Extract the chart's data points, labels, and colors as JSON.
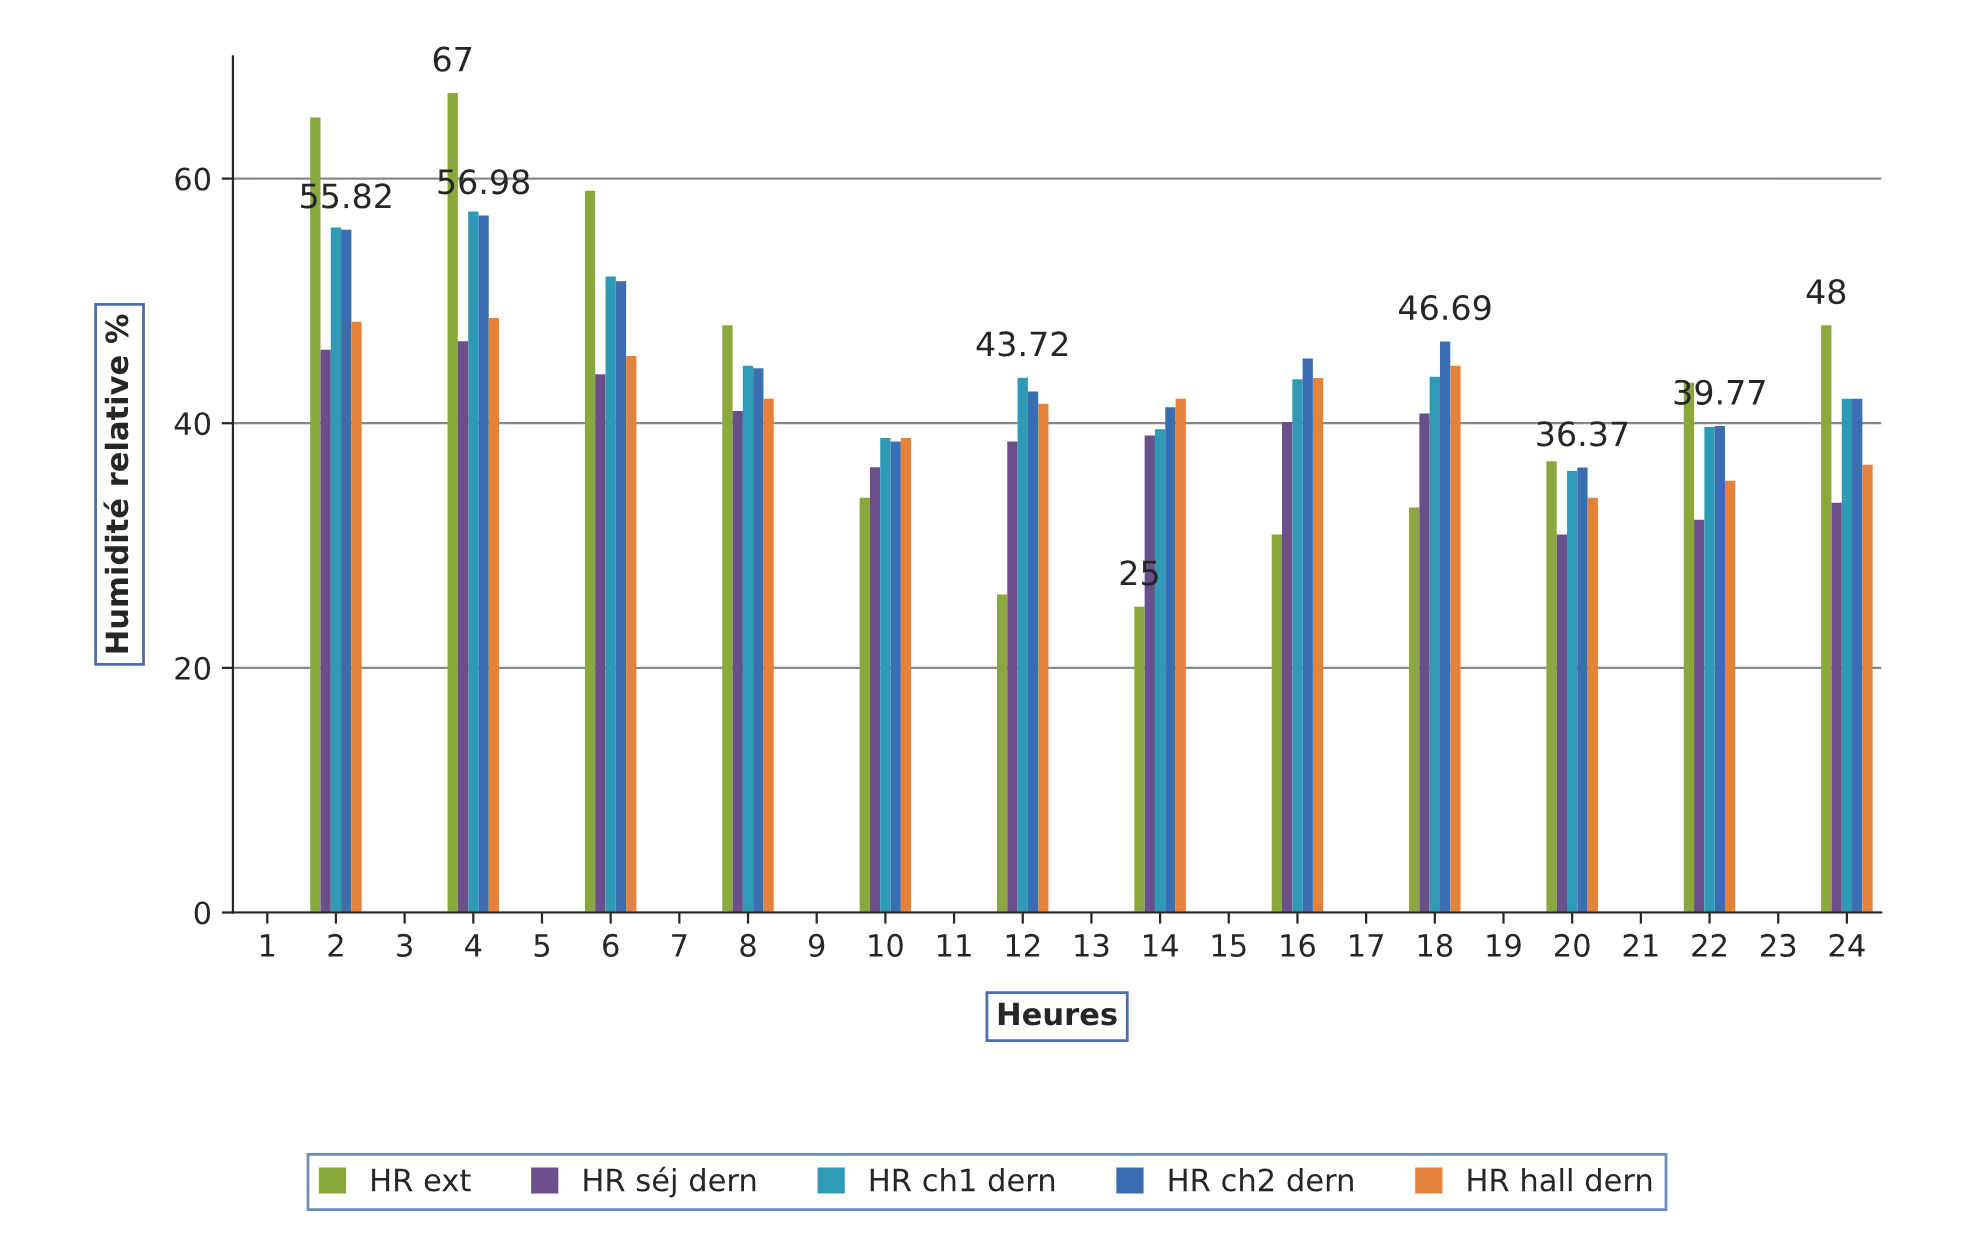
{
  "chart_data": {
    "type": "bar",
    "xlabel": "Heures",
    "ylabel": "Humidité relative %",
    "categories": [
      "1",
      "2",
      "3",
      "4",
      "5",
      "6",
      "7",
      "8",
      "9",
      "10",
      "11",
      "12",
      "13",
      "14",
      "15",
      "16",
      "17",
      "18",
      "19",
      "20",
      "21",
      "22",
      "23",
      "24"
    ],
    "ylim": [
      0,
      70
    ],
    "yticks": [
      0,
      20,
      40,
      60
    ],
    "grid": "y",
    "legend": "bottom",
    "series": [
      {
        "name": "HR ext",
        "color": "#8aa83c",
        "values": [
          null,
          65.0,
          null,
          67,
          null,
          59.0,
          null,
          48.0,
          null,
          33.9,
          null,
          26.0,
          null,
          25,
          null,
          30.9,
          null,
          33.1,
          null,
          36.9,
          null,
          43.3,
          null,
          48
        ],
        "value_labels": [
          null,
          null,
          null,
          "67",
          null,
          null,
          null,
          null,
          null,
          null,
          null,
          null,
          null,
          "25",
          null,
          null,
          null,
          null,
          null,
          null,
          null,
          null,
          null,
          "48"
        ]
      },
      {
        "name": "HR séj dern",
        "color": "#6a4f8a",
        "values": [
          null,
          46.0,
          null,
          46.7,
          null,
          44.0,
          null,
          41.0,
          null,
          36.4,
          null,
          38.5,
          null,
          39.0,
          null,
          40.1,
          null,
          40.8,
          null,
          30.9,
          null,
          32.1,
          null,
          33.5
        ]
      },
      {
        "name": "HR ch1 dern",
        "color": "#2e9ab5",
        "values": [
          null,
          56.0,
          null,
          57.3,
          null,
          52.0,
          null,
          44.7,
          null,
          38.8,
          null,
          43.72,
          null,
          39.5,
          null,
          43.6,
          null,
          43.8,
          null,
          36.1,
          null,
          39.7,
          null,
          42.0
        ],
        "value_labels": [
          null,
          null,
          null,
          null,
          null,
          null,
          null,
          null,
          null,
          null,
          null,
          "43.72",
          null,
          null,
          null,
          null,
          null,
          null,
          null,
          null,
          null,
          null,
          null,
          null
        ]
      },
      {
        "name": "HR ch2 dern",
        "color": "#3a6eb0",
        "values": [
          null,
          55.82,
          null,
          56.98,
          null,
          51.6,
          null,
          44.5,
          null,
          38.5,
          null,
          42.6,
          null,
          41.3,
          null,
          45.3,
          null,
          46.69,
          null,
          36.37,
          null,
          39.77,
          null,
          42.0
        ],
        "value_labels": [
          null,
          "55.82",
          null,
          "56.98",
          null,
          null,
          null,
          null,
          null,
          null,
          null,
          null,
          null,
          null,
          null,
          null,
          null,
          "46.69",
          null,
          "36.37",
          null,
          "39.77",
          null,
          null
        ]
      },
      {
        "name": "HR hall dern",
        "color": "#e5823a",
        "values": [
          null,
          48.3,
          null,
          48.6,
          null,
          45.5,
          null,
          42.0,
          null,
          38.8,
          null,
          41.6,
          null,
          42.0,
          null,
          43.7,
          null,
          44.7,
          null,
          33.9,
          null,
          35.3,
          null,
          36.6
        ]
      }
    ]
  }
}
